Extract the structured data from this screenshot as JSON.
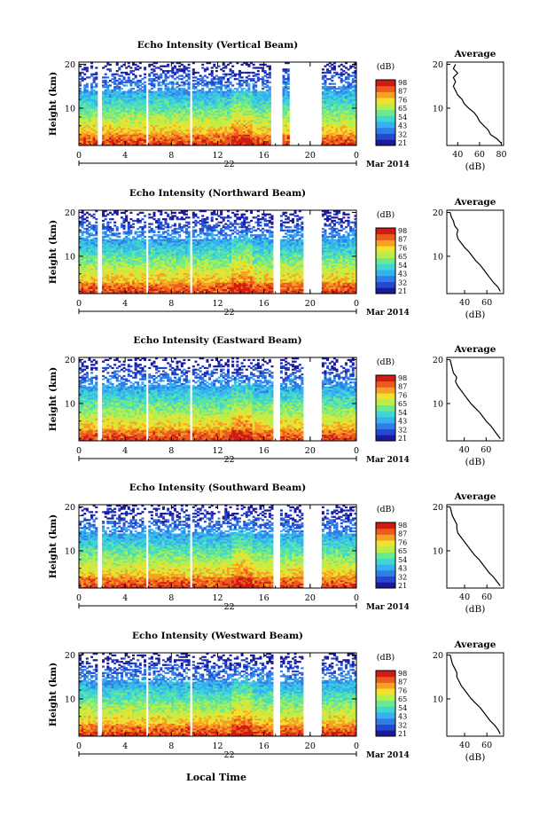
{
  "page": {
    "x_axis_title": "Local Time",
    "date_day": "22",
    "date_label": "Mar 2014"
  },
  "colorbar": {
    "unit": "(dB)",
    "ticks_vertical": [
      "98",
      "87",
      "76",
      "65",
      "54",
      "43",
      "32",
      "21"
    ],
    "ticks_northward": [
      "98",
      "87",
      "76",
      "65",
      "54",
      "43",
      "32",
      "21"
    ],
    "ticks_eastward": [
      "98",
      "87",
      "76",
      "65",
      "54",
      "43",
      "32",
      "21"
    ],
    "ticks_southward": [
      "98",
      "87",
      "76",
      "65",
      "54",
      "43",
      "32",
      "21"
    ],
    "ticks_westward": [
      "98",
      "87",
      "76",
      "65",
      "54",
      "43",
      "32",
      "21"
    ],
    "colors": [
      "#1a1a9a",
      "#2548d0",
      "#2f7ee6",
      "#36b0f0",
      "#3fd7d0",
      "#6ee88e",
      "#b6ef4c",
      "#f0e030",
      "#f6a123",
      "#ec5a1e",
      "#d01a14"
    ]
  },
  "chart_data": [
    {
      "type": "heatmap",
      "title": "Echo Intensity (Vertical Beam)",
      "ylabel": "Height (km)",
      "xticks": [
        "0",
        "4",
        "8",
        "12",
        "16",
        "20",
        "0"
      ],
      "yticks": [
        "20",
        "10"
      ],
      "xlim": [
        0,
        24
      ],
      "ylim": [
        1.5,
        20.5
      ],
      "zlim": [
        21,
        98
      ],
      "gaps_hours": [
        [
          1.7,
          2.0
        ],
        [
          5.7,
          5.9
        ],
        [
          9.6,
          9.8
        ],
        [
          16.6,
          17.5
        ],
        [
          18.2,
          21.0
        ]
      ],
      "average_profile": {
        "title": "Average",
        "xlabel": "(dB)",
        "xticks": [
          "40",
          "60",
          "80"
        ],
        "xlim": [
          30,
          82
        ],
        "heights": [
          2,
          3,
          4,
          5,
          6,
          7,
          8,
          9,
          10,
          11,
          12,
          13,
          14,
          15,
          16,
          17,
          18,
          19,
          20
        ],
        "values": [
          80,
          76,
          70,
          68,
          64,
          60,
          58,
          55,
          50,
          46,
          44,
          40,
          38,
          36,
          38,
          36,
          40,
          36,
          38
        ]
      }
    },
    {
      "type": "heatmap",
      "title": "Echo Intensity (Northward Beam)",
      "ylabel": "Height (km)",
      "xticks": [
        "0",
        "4",
        "8",
        "12",
        "16",
        "20",
        "0"
      ],
      "yticks": [
        "20",
        "10"
      ],
      "xlim": [
        0,
        24
      ],
      "ylim": [
        1.5,
        20.5
      ],
      "zlim": [
        21,
        98
      ],
      "gaps_hours": [
        [
          1.7,
          2.0
        ],
        [
          5.7,
          5.9
        ],
        [
          9.6,
          9.8
        ],
        [
          16.8,
          17.3
        ],
        [
          19.4,
          21.0
        ]
      ],
      "average_profile": {
        "title": "Average",
        "xlabel": "(dB)",
        "xticks": [
          "40",
          "60"
        ],
        "xlim": [
          24,
          75
        ],
        "heights": [
          2,
          3,
          4,
          5,
          6,
          7,
          8,
          9,
          10,
          11,
          12,
          13,
          14,
          15,
          16,
          17,
          18,
          19,
          20
        ],
        "values": [
          72,
          70,
          66,
          63,
          60,
          57,
          54,
          50,
          47,
          44,
          40,
          37,
          34,
          33,
          34,
          31,
          30,
          28,
          27
        ]
      }
    },
    {
      "type": "heatmap",
      "title": "Echo Intensity (Eastward Beam)",
      "ylabel": "Height (km)",
      "xticks": [
        "0",
        "4",
        "8",
        "12",
        "16",
        "20",
        "0"
      ],
      "yticks": [
        "20",
        "10"
      ],
      "xlim": [
        0,
        24
      ],
      "ylim": [
        1.5,
        20.5
      ],
      "zlim": [
        21,
        98
      ],
      "gaps_hours": [
        [
          1.7,
          2.0
        ],
        [
          5.7,
          5.9
        ],
        [
          9.6,
          9.8
        ],
        [
          16.8,
          17.3
        ],
        [
          19.4,
          21.0
        ]
      ],
      "average_profile": {
        "title": "Average",
        "xlabel": "(dB)",
        "xticks": [
          "40",
          "60"
        ],
        "xlim": [
          24,
          76
        ],
        "heights": [
          2,
          3,
          4,
          5,
          6,
          7,
          8,
          9,
          10,
          11,
          12,
          13,
          14,
          15,
          16,
          17,
          18,
          19,
          20
        ],
        "values": [
          73,
          70,
          67,
          64,
          60,
          57,
          54,
          50,
          46,
          43,
          40,
          37,
          34,
          32,
          33,
          30,
          29,
          28,
          27
        ]
      }
    },
    {
      "type": "heatmap",
      "title": "Echo Intensity (Southward Beam)",
      "ylabel": "Height (km)",
      "xticks": [
        "0",
        "4",
        "8",
        "12",
        "16",
        "20",
        "0"
      ],
      "yticks": [
        "20",
        "10"
      ],
      "xlim": [
        0,
        24
      ],
      "ylim": [
        1.5,
        20.5
      ],
      "zlim": [
        21,
        98
      ],
      "gaps_hours": [
        [
          1.7,
          2.0
        ],
        [
          5.7,
          5.9
        ],
        [
          9.6,
          9.8
        ],
        [
          16.8,
          17.3
        ],
        [
          19.4,
          21.0
        ]
      ],
      "average_profile": {
        "title": "Average",
        "xlabel": "(dB)",
        "xticks": [
          "40",
          "60"
        ],
        "xlim": [
          24,
          75
        ],
        "heights": [
          2,
          3,
          4,
          5,
          6,
          7,
          8,
          9,
          10,
          11,
          12,
          13,
          14,
          15,
          16,
          17,
          18,
          19,
          20
        ],
        "values": [
          72,
          69,
          66,
          62,
          59,
          56,
          53,
          49,
          46,
          43,
          40,
          37,
          34,
          33,
          33,
          31,
          29,
          28,
          27
        ]
      }
    },
    {
      "type": "heatmap",
      "title": "Echo Intensity (Westward Beam)",
      "ylabel": "Height (km)",
      "xticks": [
        "0",
        "4",
        "8",
        "12",
        "16",
        "20",
        "0"
      ],
      "yticks": [
        "20",
        "10"
      ],
      "xlim": [
        0,
        24
      ],
      "ylim": [
        1.5,
        20.5
      ],
      "zlim": [
        21,
        98
      ],
      "gaps_hours": [
        [
          1.7,
          2.0
        ],
        [
          5.7,
          5.9
        ],
        [
          9.6,
          9.8
        ],
        [
          16.8,
          17.3
        ],
        [
          19.4,
          21.0
        ]
      ],
      "average_profile": {
        "title": "Average",
        "xlabel": "(dB)",
        "xticks": [
          "40",
          "60"
        ],
        "xlim": [
          24,
          75
        ],
        "heights": [
          2,
          3,
          4,
          5,
          6,
          7,
          8,
          9,
          10,
          11,
          12,
          13,
          14,
          15,
          16,
          17,
          18,
          19,
          20
        ],
        "values": [
          72,
          70,
          67,
          63,
          60,
          57,
          54,
          50,
          46,
          43,
          40,
          37,
          35,
          33,
          33,
          31,
          29,
          28,
          27
        ]
      }
    }
  ]
}
